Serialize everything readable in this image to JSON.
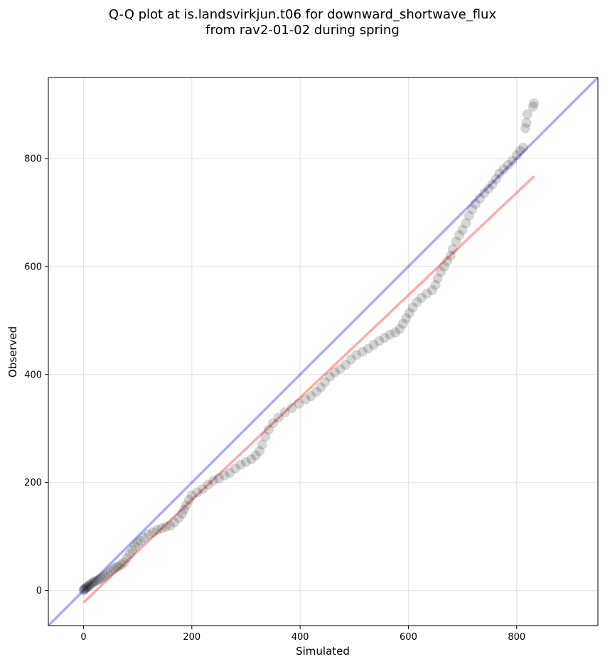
{
  "chart_data": {
    "type": "scatter",
    "title_line1": "Q-Q plot at is.landsvirkjun.t06 for downward_shortwave_flux",
    "title_line2": "from rav2-01-02 during spring",
    "xlabel": "Simulated",
    "ylabel": "Observed",
    "xlim": [
      -65,
      950
    ],
    "ylim": [
      -65,
      950
    ],
    "xticks": [
      0,
      200,
      400,
      600,
      800
    ],
    "yticks": [
      0,
      200,
      400,
      600,
      800
    ],
    "grid": true,
    "reference_line": {
      "color": "#0000ff",
      "from": [
        -65,
        -65
      ],
      "to": [
        950,
        950
      ]
    },
    "fit_line": {
      "color": "#ff0000",
      "from": [
        0,
        -22
      ],
      "to": [
        832,
        767
      ]
    },
    "point_color": "#000000",
    "points": [
      [
        0,
        0
      ],
      [
        1,
        2
      ],
      [
        2,
        3
      ],
      [
        4,
        4
      ],
      [
        6,
        6
      ],
      [
        8,
        7
      ],
      [
        10,
        9
      ],
      [
        12,
        11
      ],
      [
        15,
        13
      ],
      [
        18,
        15
      ],
      [
        20,
        17
      ],
      [
        24,
        18
      ],
      [
        28,
        20
      ],
      [
        32,
        22
      ],
      [
        36,
        25
      ],
      [
        40,
        28
      ],
      [
        45,
        32
      ],
      [
        50,
        36
      ],
      [
        55,
        40
      ],
      [
        60,
        43
      ],
      [
        65,
        45
      ],
      [
        70,
        48
      ],
      [
        75,
        52
      ],
      [
        80,
        60
      ],
      [
        85,
        68
      ],
      [
        90,
        75
      ],
      [
        95,
        82
      ],
      [
        100,
        88
      ],
      [
        105,
        92
      ],
      [
        112,
        98
      ],
      [
        120,
        104
      ],
      [
        128,
        108
      ],
      [
        136,
        112
      ],
      [
        144,
        115
      ],
      [
        152,
        118
      ],
      [
        160,
        120
      ],
      [
        168,
        126
      ],
      [
        176,
        134
      ],
      [
        182,
        142
      ],
      [
        186,
        150
      ],
      [
        190,
        158
      ],
      [
        195,
        168
      ],
      [
        200,
        176
      ],
      [
        210,
        182
      ],
      [
        220,
        188
      ],
      [
        230,
        196
      ],
      [
        240,
        203
      ],
      [
        250,
        208
      ],
      [
        260,
        213
      ],
      [
        270,
        218
      ],
      [
        280,
        226
      ],
      [
        290,
        233
      ],
      [
        300,
        238
      ],
      [
        310,
        243
      ],
      [
        318,
        250
      ],
      [
        325,
        258
      ],
      [
        330,
        270
      ],
      [
        336,
        285
      ],
      [
        342,
        298
      ],
      [
        350,
        310
      ],
      [
        360,
        320
      ],
      [
        372,
        330
      ],
      [
        385,
        338
      ],
      [
        398,
        346
      ],
      [
        410,
        354
      ],
      [
        420,
        360
      ],
      [
        430,
        368
      ],
      [
        438,
        376
      ],
      [
        446,
        386
      ],
      [
        455,
        396
      ],
      [
        464,
        404
      ],
      [
        474,
        410
      ],
      [
        484,
        418
      ],
      [
        494,
        428
      ],
      [
        504,
        436
      ],
      [
        515,
        442
      ],
      [
        526,
        448
      ],
      [
        536,
        455
      ],
      [
        546,
        462
      ],
      [
        556,
        468
      ],
      [
        566,
        474
      ],
      [
        576,
        478
      ],
      [
        584,
        484
      ],
      [
        590,
        494
      ],
      [
        596,
        504
      ],
      [
        602,
        514
      ],
      [
        608,
        524
      ],
      [
        616,
        534
      ],
      [
        624,
        542
      ],
      [
        634,
        550
      ],
      [
        644,
        556
      ],
      [
        650,
        566
      ],
      [
        654,
        578
      ],
      [
        660,
        590
      ],
      [
        666,
        600
      ],
      [
        672,
        610
      ],
      [
        678,
        620
      ],
      [
        682,
        632
      ],
      [
        688,
        646
      ],
      [
        694,
        658
      ],
      [
        700,
        668
      ],
      [
        706,
        680
      ],
      [
        712,
        694
      ],
      [
        718,
        706
      ],
      [
        724,
        716
      ],
      [
        732,
        726
      ],
      [
        740,
        736
      ],
      [
        748,
        744
      ],
      [
        755,
        752
      ],
      [
        762,
        762
      ],
      [
        768,
        772
      ],
      [
        776,
        780
      ],
      [
        784,
        788
      ],
      [
        792,
        796
      ],
      [
        800,
        806
      ],
      [
        806,
        814
      ],
      [
        812,
        820
      ],
      [
        816,
        856
      ],
      [
        818,
        866
      ],
      [
        820,
        882
      ],
      [
        830,
        896
      ],
      [
        832,
        902
      ]
    ]
  }
}
